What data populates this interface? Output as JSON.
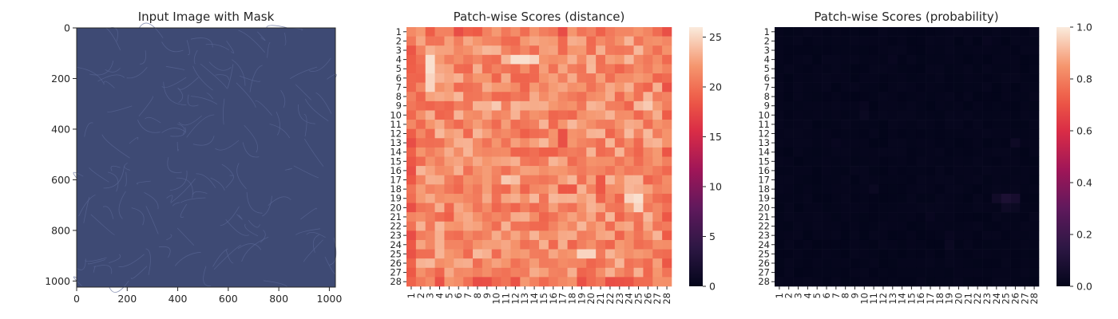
{
  "chart_data": [
    {
      "type": "image",
      "title": "Input Image with Mask",
      "xticks": [
        0,
        200,
        400,
        600,
        800,
        1000
      ],
      "yticks": [
        0,
        200,
        400,
        600,
        800,
        1000
      ],
      "xlim": [
        0,
        1024
      ],
      "ylim": [
        1024,
        0
      ],
      "image_color": "#3e4a74",
      "image_edge_color": "#5a6796"
    },
    {
      "type": "heatmap",
      "title": "Patch-wise Scores (distance)",
      "x_categories": [
        "1",
        "2",
        "3",
        "4",
        "5",
        "6",
        "7",
        "8",
        "9",
        "10",
        "11",
        "12",
        "13",
        "14",
        "15",
        "16",
        "17",
        "18",
        "19",
        "20",
        "21",
        "22",
        "23",
        "24",
        "25",
        "26",
        "27",
        "28"
      ],
      "y_categories": [
        "1",
        "2",
        "3",
        "4",
        "5",
        "6",
        "7",
        "8",
        "9",
        "10",
        "11",
        "12",
        "13",
        "14",
        "15",
        "16",
        "17",
        "18",
        "19",
        "20",
        "21",
        "22",
        "23",
        "24",
        "25",
        "26",
        "27",
        "28"
      ],
      "colorbar_range": [
        0,
        26
      ],
      "colorbar_ticks": [
        0,
        5,
        10,
        15,
        20,
        25
      ],
      "colormap": "rocket",
      "base_value": 21.5,
      "border_value": 20,
      "hotspots": [
        {
          "row": 4,
          "col": 3,
          "value": 25.5
        },
        {
          "row": 5,
          "col": 3,
          "value": 25.5
        },
        {
          "row": 6,
          "col": 3,
          "value": 25
        },
        {
          "row": 7,
          "col": 3,
          "value": 25
        },
        {
          "row": 4,
          "col": 12,
          "value": 25.5
        },
        {
          "row": 4,
          "col": 13,
          "value": 25.5
        },
        {
          "row": 4,
          "col": 14,
          "value": 25
        },
        {
          "row": 19,
          "col": 24,
          "value": 25
        },
        {
          "row": 19,
          "col": 25,
          "value": 25.5
        },
        {
          "row": 20,
          "col": 25,
          "value": 25
        },
        {
          "row": 25,
          "col": 19,
          "value": 25
        },
        {
          "row": 25,
          "col": 20,
          "value": 25
        },
        {
          "row": 9,
          "col": 10,
          "value": 24.5
        },
        {
          "row": 9,
          "col": 26,
          "value": 24.5
        },
        {
          "row": 17,
          "col": 11,
          "value": 24.5
        },
        {
          "row": 17,
          "col": 12,
          "value": 24
        },
        {
          "row": 13,
          "col": 17,
          "value": 18
        },
        {
          "row": 12,
          "col": 17,
          "value": 18
        },
        {
          "row": 18,
          "col": 17,
          "value": 18.5
        },
        {
          "row": 18,
          "col": 18,
          "value": 18.5
        },
        {
          "row": 12,
          "col": 13,
          "value": 19
        },
        {
          "row": 14,
          "col": 15,
          "value": 19
        },
        {
          "row": 14,
          "col": 16,
          "value": 19
        },
        {
          "row": 17,
          "col": 21,
          "value": 18.5
        },
        {
          "row": 18,
          "col": 21,
          "value": 18.5
        },
        {
          "row": 1,
          "col": 28,
          "value": 18
        },
        {
          "row": 21,
          "col": 5,
          "value": 19
        },
        {
          "row": 21,
          "col": 28,
          "value": 18.5
        }
      ]
    },
    {
      "type": "heatmap",
      "title": "Patch-wise Scores (probability)",
      "x_categories": [
        "1",
        "2",
        "3",
        "4",
        "5",
        "6",
        "7",
        "8",
        "9",
        "10",
        "11",
        "12",
        "13",
        "14",
        "15",
        "16",
        "17",
        "18",
        "19",
        "20",
        "21",
        "22",
        "23",
        "24",
        "25",
        "26",
        "27",
        "28"
      ],
      "y_categories": [
        "1",
        "2",
        "3",
        "4",
        "5",
        "6",
        "7",
        "8",
        "9",
        "10",
        "11",
        "12",
        "13",
        "14",
        "15",
        "16",
        "17",
        "18",
        "19",
        "20",
        "21",
        "22",
        "23",
        "24",
        "25",
        "26",
        "27",
        "28"
      ],
      "colorbar_range": [
        0,
        1
      ],
      "colorbar_ticks": [
        0.0,
        0.2,
        0.4,
        0.6,
        0.8,
        1.0
      ],
      "colorbar_labels": [
        "0.0",
        "0.2",
        "0.4",
        "0.6",
        "0.8",
        "1.0"
      ],
      "colormap": "rocket",
      "base_value": 0.0,
      "border_value": 0.0,
      "hotspots": [
        {
          "row": 19,
          "col": 24,
          "value": 0.05
        },
        {
          "row": 19,
          "col": 25,
          "value": 0.09
        },
        {
          "row": 19,
          "col": 26,
          "value": 0.07
        },
        {
          "row": 20,
          "col": 25,
          "value": 0.04
        },
        {
          "row": 20,
          "col": 26,
          "value": 0.03
        },
        {
          "row": 13,
          "col": 26,
          "value": 0.04
        },
        {
          "row": 10,
          "col": 10,
          "value": 0.03
        },
        {
          "row": 9,
          "col": 10,
          "value": 0.02
        },
        {
          "row": 18,
          "col": 11,
          "value": 0.03
        },
        {
          "row": 2,
          "col": 23,
          "value": 0.02
        },
        {
          "row": 4,
          "col": 13,
          "value": 0.02
        },
        {
          "row": 24,
          "col": 19,
          "value": 0.03
        },
        {
          "row": 23,
          "col": 19,
          "value": 0.02
        },
        {
          "row": 13,
          "col": 7,
          "value": 0.02
        },
        {
          "row": 21,
          "col": 17,
          "value": 0.02
        }
      ]
    }
  ]
}
